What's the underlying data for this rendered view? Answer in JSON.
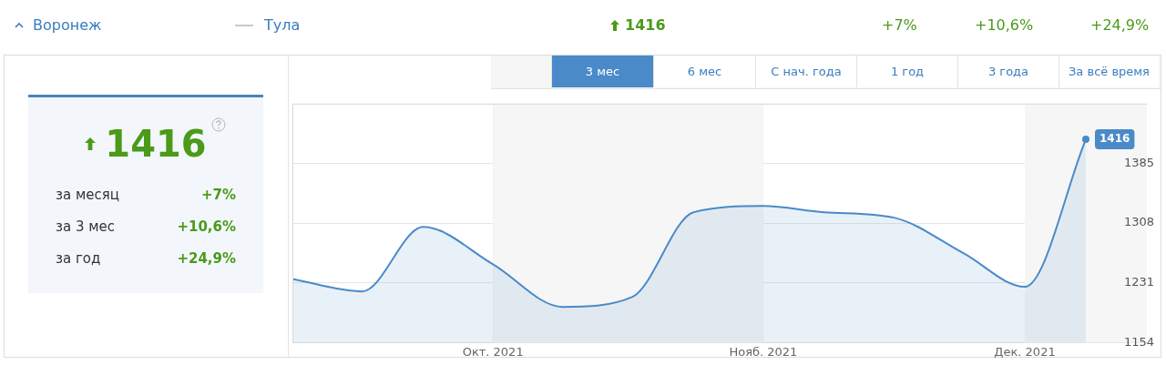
{
  "chart_data": {
    "type": "area",
    "title": "Воронеж",
    "annotations": [
      "Тула",
      "1416",
      "+7%",
      "+10,6%",
      "+24,9%",
      "3 мес",
      "6 мес",
      "С нач. года",
      "1 год",
      "3 года",
      "За всё время",
      "1416",
      "за месяц",
      "+7%",
      "за 3 мес",
      "+10,6%",
      "за год",
      "+24,9%"
    ],
    "x": [
      "2021-09-08",
      "2021-09-16",
      "2021-09-23",
      "2021-10-01",
      "2021-10-09",
      "2021-10-17",
      "2021-10-24",
      "2021-11-01",
      "2021-11-08",
      "2021-11-16",
      "2021-11-24",
      "2021-12-01",
      "2021-12-08"
    ],
    "series": [
      {
        "color": "#4a8ac8",
        "values": [
          1236,
          1220,
          1303,
          1255,
          1200,
          1213,
          1322,
          1330,
          1322,
          1315,
          1269,
          1226,
          1416
        ]
      }
    ],
    "value_labels": [
      null,
      null,
      null,
      null,
      null,
      null,
      null,
      null,
      null,
      null,
      null,
      null,
      "1416"
    ],
    "xlim": [
      "2021-09-08",
      "2021-12-15"
    ],
    "xticks": [
      {
        "value": "2021-10-01",
        "label": "Окт. 2021"
      },
      {
        "value": "2021-11-01",
        "label": "Нояб. 2021"
      },
      {
        "value": "2021-12-01",
        "label": "Дек. 2021"
      }
    ],
    "ylim": [
      1154,
      1462
    ],
    "yticks": [
      1154,
      1231,
      1308,
      1385
    ],
    "bands": [
      {
        "axis": "x",
        "from": "2021-10-01",
        "to": "2021-11-01",
        "color": "#f6f6f6"
      },
      {
        "axis": "x",
        "from": "2021-12-01",
        "to": "2021-12-15",
        "color": "#f6f6f6"
      }
    ],
    "grid": true,
    "legend": false
  }
}
